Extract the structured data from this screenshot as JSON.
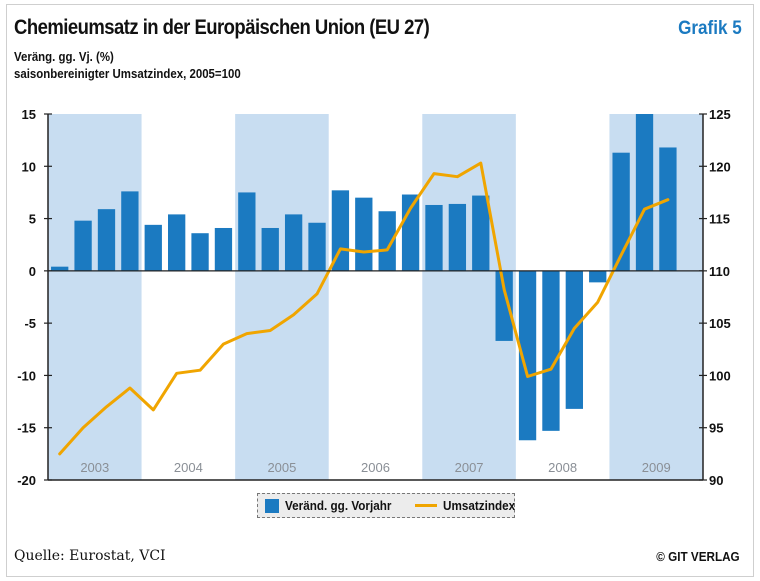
{
  "header": {
    "title": "Chemieumsatz in der Europäischen Union (EU 27)",
    "grafik": "Grafik 5",
    "subtitle_left_axis": "Veräng. gg. Vj. (%)",
    "subtitle_right_axis": "saisonbereinigter Umsatzindex, 2005=100"
  },
  "footer": {
    "source": "Quelle: Eurostat, VCI",
    "copyright": "© GIT VERLAG"
  },
  "legend": {
    "bar_label": "Veränd. gg. Vorjahr",
    "line_label": "Umsatzindex"
  },
  "colors": {
    "bar": "#1b7ac1",
    "line": "#f0a500",
    "band": "#c8ddf1",
    "year_text": "#8a8f96"
  },
  "chart_data": {
    "type": "bar",
    "title": "Chemieumsatz in der Europäischen Union (EU 27)",
    "ylabel": "Veräng. gg. Vj. (%)",
    "y2label": "saisonbereinigter Umsatzindex, 2005=100",
    "ylim": [
      -20,
      15
    ],
    "yticks": [
      15,
      10,
      5,
      0,
      -5,
      -10,
      -15,
      -20
    ],
    "y2lim": [
      90,
      125
    ],
    "y2ticks": [
      125,
      120,
      115,
      110,
      105,
      100,
      95,
      90
    ],
    "years": [
      "2003",
      "2004",
      "2005",
      "2006",
      "2007",
      "2008",
      "2009"
    ],
    "shaded_years": [
      "2003",
      "2005",
      "2007",
      "2009"
    ],
    "categories": [
      "2003 Q1",
      "2003 Q2",
      "2003 Q3",
      "2003 Q4",
      "2004 Q1",
      "2004 Q2",
      "2004 Q3",
      "2004 Q4",
      "2005 Q1",
      "2005 Q2",
      "2005 Q3",
      "2005 Q4",
      "2006 Q1",
      "2006 Q2",
      "2006 Q3",
      "2006 Q4",
      "2007 Q1",
      "2007 Q2",
      "2007 Q3",
      "2007 Q4",
      "2008 Q1",
      "2008 Q2",
      "2008 Q3",
      "2008 Q4",
      "2009 Q1",
      "2009 Q2",
      "2009 Q3",
      "2009 Q4"
    ],
    "series": [
      {
        "name": "Veränd. gg. Vorjahr",
        "type": "bar",
        "axis": "left",
        "values": [
          0.4,
          4.8,
          5.9,
          7.6,
          4.4,
          5.4,
          3.6,
          4.1,
          7.5,
          4.1,
          5.4,
          4.6,
          7.7,
          7.0,
          5.7,
          7.3,
          6.3,
          6.4,
          7.2,
          -6.7,
          -16.2,
          -15.3,
          -13.2,
          -1.1,
          11.3,
          15.0,
          11.8,
          null
        ]
      },
      {
        "name": "Umsatzindex",
        "type": "line",
        "axis": "right",
        "values": [
          92.5,
          95.0,
          97.0,
          98.8,
          96.7,
          100.2,
          100.5,
          103.0,
          104.0,
          104.3,
          105.8,
          107.8,
          112.1,
          111.8,
          112.0,
          116.0,
          119.3,
          119.0,
          120.3,
          108.2,
          99.9,
          100.6,
          104.5,
          107.0,
          111.5,
          115.9,
          116.8,
          null
        ]
      }
    ]
  }
}
